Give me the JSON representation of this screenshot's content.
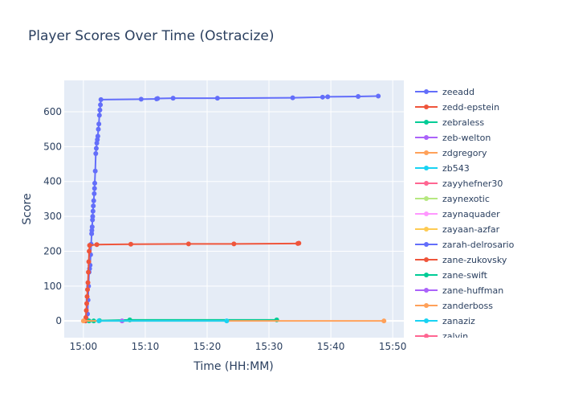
{
  "chart_data": {
    "type": "line",
    "title": "Player Scores Over Time (Ostracize)",
    "xlabel": "Time (HH:MM)",
    "ylabel": "Score",
    "xlim": [
      "14:56:54",
      "15:51:48"
    ],
    "ylim": [
      -48,
      690
    ],
    "x_ticks": [
      "15:00",
      "15:10",
      "15:20",
      "15:30",
      "15:40",
      "15:50"
    ],
    "y_ticks": [
      0,
      100,
      200,
      300,
      400,
      500,
      600
    ],
    "grid": true,
    "legend_position": "right",
    "plot_bgcolor": "#e5ecf6",
    "series": [
      {
        "name": "zeeadd",
        "color": "#636efa",
        "x": [
          "15:00:20",
          "15:00:30",
          "15:00:40",
          "15:00:45",
          "15:00:50",
          "15:00:55",
          "15:01:00",
          "15:01:05",
          "15:01:10",
          "15:01:15",
          "15:01:20",
          "15:01:22",
          "15:01:25",
          "15:01:28",
          "15:01:30",
          "15:01:33",
          "15:01:36",
          "15:01:40",
          "15:01:45",
          "15:01:48",
          "15:01:50",
          "15:01:55",
          "15:02:00",
          "15:02:05",
          "15:02:10",
          "15:02:15",
          "15:02:20",
          "15:02:25",
          "15:02:30",
          "15:02:35",
          "15:02:40",
          "15:02:45",
          "15:02:50",
          "15:09:20",
          "15:11:50",
          "15:12:00",
          "15:14:30",
          "15:21:40",
          "15:33:50",
          "15:38:40",
          "15:39:30",
          "15:44:25",
          "15:47:40"
        ],
        "y": [
          0,
          5,
          20,
          60,
          100,
          140,
          150,
          160,
          190,
          220,
          250,
          260,
          270,
          290,
          300,
          315,
          330,
          345,
          365,
          380,
          395,
          430,
          480,
          495,
          510,
          520,
          530,
          550,
          565,
          590,
          605,
          620,
          635,
          636,
          637,
          638,
          639,
          639,
          640,
          642,
          643,
          644,
          645
        ]
      },
      {
        "name": "zedd-epstein",
        "color": "#EF553B",
        "x": [
          "15:00:20",
          "15:00:24",
          "15:00:28",
          "15:00:32",
          "15:00:36",
          "15:00:40",
          "15:00:44",
          "15:00:48",
          "15:00:52",
          "15:00:56",
          "15:01:00",
          "15:02:10",
          "15:07:40",
          "15:17:00",
          "15:24:20",
          "15:34:40",
          "15:34:50"
        ],
        "y": [
          0,
          10,
          30,
          50,
          70,
          90,
          110,
          140,
          170,
          200,
          217,
          219,
          220,
          221,
          221,
          222,
          223
        ]
      },
      {
        "name": "zebraless",
        "color": "#00cc96",
        "x": [
          "15:00:55",
          "15:01:40",
          "15:02:35",
          "15:07:30",
          "15:31:15"
        ],
        "y": [
          0,
          0,
          1,
          3,
          3
        ]
      },
      {
        "name": "zeb-welton",
        "color": "#ab63fa",
        "x": [
          "15:06:15"
        ],
        "y": [
          0
        ]
      },
      {
        "name": "zdgregory",
        "color": "#FFA15A",
        "x": [
          "15:00:00",
          "15:48:35"
        ],
        "y": [
          0,
          0
        ]
      },
      {
        "name": "zb543",
        "color": "#19d3f3",
        "x": [
          "15:02:30",
          "15:23:10"
        ],
        "y": [
          0,
          0
        ]
      },
      {
        "name": "zayyhefner30",
        "color": "#FF6692",
        "x": [],
        "y": []
      },
      {
        "name": "zaynexotic",
        "color": "#B6E880",
        "x": [],
        "y": []
      },
      {
        "name": "zaynaquader",
        "color": "#FF97FF",
        "x": [],
        "y": []
      },
      {
        "name": "zayaan-azfar",
        "color": "#FECB52",
        "x": [],
        "y": []
      },
      {
        "name": "zarah-delrosario",
        "color": "#636efa",
        "x": [],
        "y": []
      },
      {
        "name": "zane-zukovsky",
        "color": "#EF553B",
        "x": [],
        "y": []
      },
      {
        "name": "zane-swift",
        "color": "#00cc96",
        "x": [],
        "y": []
      },
      {
        "name": "zane-huffman",
        "color": "#ab63fa",
        "x": [],
        "y": []
      },
      {
        "name": "zanderboss",
        "color": "#FFA15A",
        "x": [],
        "y": []
      },
      {
        "name": "zanaziz",
        "color": "#19d3f3",
        "x": [],
        "y": []
      },
      {
        "name": "zalvin",
        "color": "#FF6692",
        "x": [],
        "y": []
      }
    ]
  }
}
